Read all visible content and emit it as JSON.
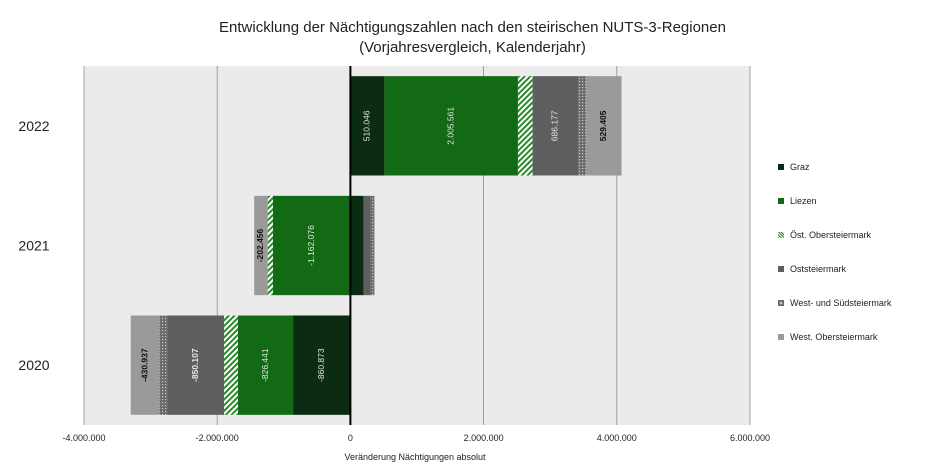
{
  "chart_data": {
    "type": "bar",
    "orientation": "horizontal",
    "stacked": true,
    "title": "Entwicklung der Nächtigungszahlen nach den steirischen NUTS-3-Regionen",
    "subtitle": "(Vorjahresvergleich, Kalenderjahr)",
    "xlabel": "Veränderung Nächtigungen absolut",
    "ylabel": "",
    "xlim": [
      -4000000,
      6000000
    ],
    "xticks": [
      -4000000,
      -2000000,
      0,
      2000000,
      4000000,
      6000000
    ],
    "xtick_labels": [
      "-4.000.000",
      "-2.000.000",
      "0",
      "2.000.000",
      "4.000.000",
      "6.000.000"
    ],
    "grid": true,
    "legend_position": "right",
    "categories": [
      "2022",
      "2021",
      "2020"
    ],
    "series": [
      {
        "name": "Graz",
        "color": "#0b2b13",
        "pattern": "solid",
        "values": [
          510046,
          200000,
          -860873
        ],
        "labels": [
          "510.046",
          "",
          "-860.873"
        ]
      },
      {
        "name": "Liezen",
        "color": "#126a14",
        "pattern": "solid",
        "values": [
          2005561,
          -1162076,
          -826441
        ],
        "labels": [
          "2.005.561",
          "-1.162.076",
          "-826.441"
        ]
      },
      {
        "name": "Öst. Obersteiermark",
        "color": "#2a8a2a",
        "pattern": "hatch",
        "values": [
          220000,
          -80000,
          -210000
        ],
        "labels": [
          "",
          "",
          ""
        ]
      },
      {
        "name": "Oststeiermark",
        "color": "#5f5f5f",
        "pattern": "solid",
        "values": [
          686177,
          100000,
          -850107
        ],
        "labels": [
          "686.177",
          "",
          "-850.107"
        ]
      },
      {
        "name": "West- und Südsteiermark",
        "color": "#6a6a6a",
        "pattern": "dotted",
        "values": [
          120000,
          60000,
          -120000
        ],
        "labels": [
          "",
          "",
          ""
        ]
      },
      {
        "name": "West. Obersteiermark",
        "color": "#9a9a9a",
        "pattern": "solid",
        "values": [
          529405,
          -202456,
          -430937
        ],
        "labels": [
          "529.405",
          "-202.456",
          "-430.937"
        ]
      }
    ]
  }
}
